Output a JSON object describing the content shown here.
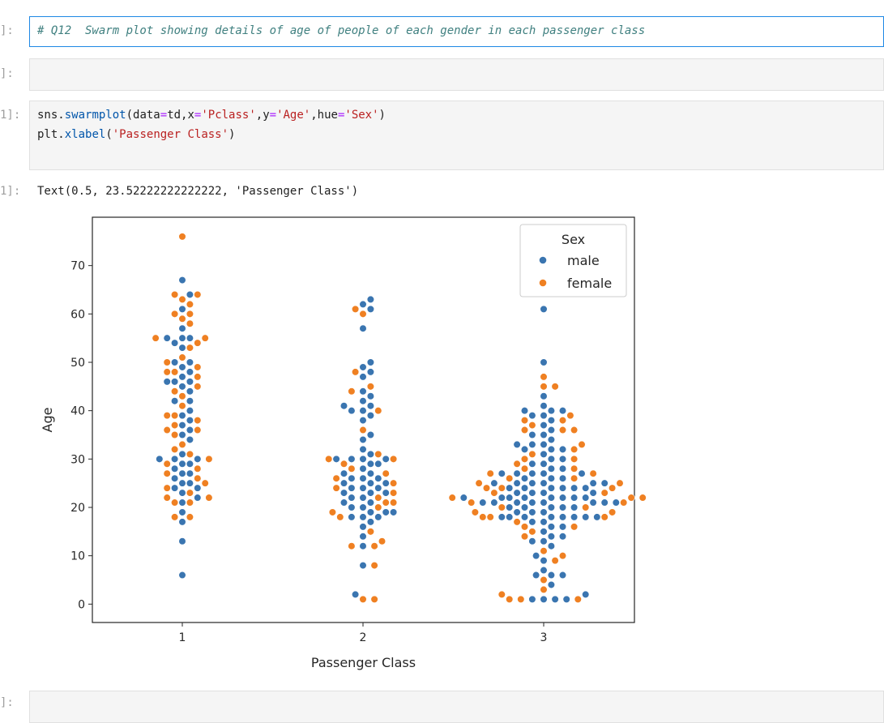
{
  "cells": {
    "c1": {
      "prompt": "]:",
      "comment": "# Q12  Swarm plot showing details of age of people of each gender in each passenger class"
    },
    "c2": {
      "prompt": "]:"
    },
    "c3": {
      "prompt": "1]:",
      "line1": {
        "a": "sns",
        "b": ".",
        "c": "swarmplot",
        "d": "(data",
        "e": "=",
        "f": "td,x",
        "g": "=",
        "h": "'Pclass'",
        "i": ",y",
        "j": "=",
        "k": "'Age'",
        "l": ",hue",
        "m": "=",
        "n": "'Sex'",
        "o": ")"
      },
      "line2": {
        "a": "plt",
        "b": ".",
        "c": "xlabel",
        "d": "(",
        "e": "'Passenger Class'",
        "f": ")"
      }
    },
    "out": {
      "prompt": "1]:",
      "text": "Text(0.5, 23.52222222222222, 'Passenger Class')"
    },
    "c4": {
      "prompt": "]:"
    }
  },
  "chart_data": {
    "type": "scatter",
    "subtype": "swarm",
    "xlabel": "Passenger Class",
    "ylabel": "Age",
    "categories": [
      "1",
      "2",
      "3"
    ],
    "ylim": [
      -3.8,
      80
    ],
    "yticks": [
      "0",
      "10",
      "20",
      "30",
      "40",
      "50",
      "60",
      "70"
    ],
    "legend": {
      "title": "Sex",
      "placement": "top-right",
      "entries": [
        "male",
        "female"
      ]
    },
    "colors": {
      "male": "#3a75b0",
      "female": "#ef8022"
    },
    "series": [
      {
        "name": "male",
        "values_by_class": {
          "1": [
            67,
            64,
            61,
            57,
            55,
            54,
            55,
            55,
            53,
            50,
            50,
            49,
            48,
            47,
            46,
            46,
            46,
            45,
            44,
            42,
            42,
            40,
            39,
            38,
            37,
            36,
            35,
            34,
            31,
            30,
            30,
            30,
            29,
            29,
            28,
            27,
            27,
            26,
            25,
            25,
            24,
            24,
            23,
            22,
            21,
            19,
            17,
            13,
            6
          ],
          "2": [
            63,
            62,
            61,
            57,
            50,
            49,
            48,
            47,
            44,
            43,
            42,
            41,
            41,
            40,
            40,
            39,
            38,
            35,
            34,
            32,
            31,
            30,
            30,
            30,
            30,
            29,
            29,
            28,
            27,
            27,
            26,
            26,
            26,
            25,
            25,
            25,
            24,
            24,
            24,
            23,
            23,
            23,
            22,
            22,
            21,
            21,
            20,
            20,
            19,
            19,
            19,
            18,
            18,
            18,
            17,
            16,
            14,
            12,
            8,
            2
          ],
          "3": [
            61,
            50,
            43,
            41,
            40,
            40,
            40,
            39,
            39,
            38,
            37,
            36,
            35,
            35,
            34,
            33,
            33,
            33,
            32,
            32,
            32,
            31,
            30,
            30,
            29,
            29,
            28,
            28,
            27,
            27,
            27,
            27,
            27,
            26,
            26,
            26,
            25,
            25,
            25,
            25,
            25,
            25,
            24,
            24,
            24,
            24,
            24,
            24,
            23,
            23,
            23,
            23,
            22,
            22,
            22,
            22,
            22,
            22,
            22,
            22,
            21,
            21,
            21,
            21,
            21,
            21,
            21,
            21,
            20,
            20,
            20,
            20,
            20,
            19,
            19,
            19,
            18,
            18,
            18,
            18,
            18,
            18,
            18,
            18,
            17,
            17,
            16,
            16,
            15,
            14,
            14,
            13,
            13,
            12,
            10,
            9,
            7,
            6,
            6,
            6,
            4,
            2,
            1,
            1,
            1,
            1
          ]
        }
      },
      {
        "name": "female",
        "values_by_class": {
          "1": [
            76,
            64,
            64,
            63,
            62,
            60,
            60,
            59,
            58,
            55,
            55,
            54,
            53,
            51,
            50,
            49,
            48,
            48,
            47,
            45,
            44,
            43,
            41,
            39,
            39,
            38,
            37,
            36,
            36,
            35,
            33,
            32,
            31,
            30,
            29,
            28,
            27,
            26,
            25,
            24,
            23,
            22,
            22,
            21,
            21,
            18,
            18
          ],
          "2": [
            61,
            60,
            48,
            45,
            44,
            40,
            36,
            31,
            30,
            30,
            29,
            28,
            27,
            26,
            25,
            24,
            23,
            22,
            21,
            21,
            20,
            19,
            18,
            15,
            13,
            12,
            12,
            8,
            1,
            1
          ],
          "3": [
            47,
            45,
            45,
            39,
            38,
            38,
            37,
            36,
            36,
            36,
            33,
            32,
            31,
            30,
            30,
            29,
            28,
            28,
            27,
            27,
            26,
            26,
            25,
            25,
            24,
            24,
            24,
            23,
            23,
            22,
            22,
            22,
            21,
            21,
            20,
            20,
            19,
            19,
            18,
            18,
            18,
            17,
            16,
            16,
            15,
            14,
            11,
            10,
            9,
            5,
            3,
            2,
            1,
            1,
            1
          ]
        }
      }
    ]
  }
}
